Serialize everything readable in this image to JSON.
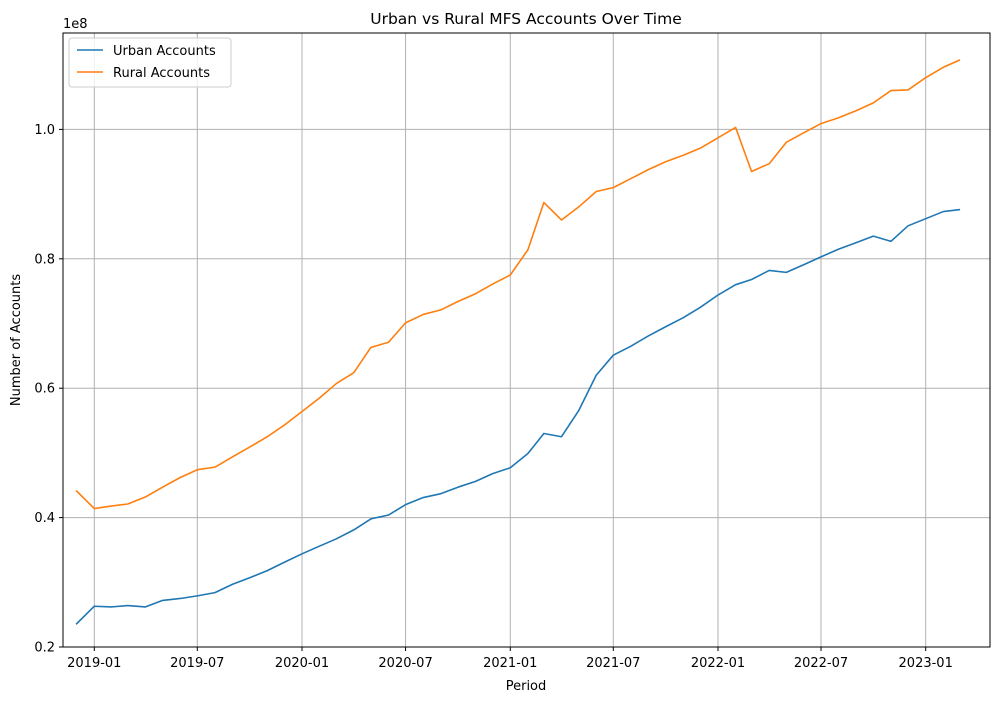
{
  "chart_data": {
    "type": "line",
    "title": "Urban vs Rural MFS Accounts Over Time",
    "xlabel": "Period",
    "ylabel": "Number of Accounts",
    "y_offset_label": "1e8",
    "xlim": [
      "2018-11-07",
      "2023-04-24"
    ],
    "ylim": [
      0.2,
      1.149
    ],
    "y_unit_multiplier": 100000000,
    "y_ticks": [
      "0.2",
      "0.4",
      "0.6",
      "0.8",
      "1.0"
    ],
    "y_tick_values": [
      0.2,
      0.4,
      0.6,
      0.8,
      1.0
    ],
    "x_ticks": [
      "2019-01",
      "2019-07",
      "2020-01",
      "2020-07",
      "2021-01",
      "2021-07",
      "2022-01",
      "2022-07",
      "2023-01"
    ],
    "x_tick_dates": [
      "2019-01-01",
      "2019-07-01",
      "2020-01-01",
      "2020-07-01",
      "2021-01-01",
      "2021-07-01",
      "2022-01-01",
      "2022-07-01",
      "2023-01-01"
    ],
    "grid": true,
    "legend_position": "top-left",
    "x": [
      "2018-12",
      "2019-01",
      "2019-02",
      "2019-03",
      "2019-04",
      "2019-05",
      "2019-06",
      "2019-07",
      "2019-08",
      "2019-09",
      "2019-10",
      "2019-11",
      "2019-12",
      "2020-01",
      "2020-02",
      "2020-03",
      "2020-04",
      "2020-05",
      "2020-06",
      "2020-07",
      "2020-08",
      "2020-09",
      "2020-10",
      "2020-11",
      "2020-12",
      "2021-01",
      "2021-02",
      "2021-03",
      "2021-04",
      "2021-05",
      "2021-06",
      "2021-07",
      "2021-08",
      "2021-09",
      "2021-10",
      "2021-11",
      "2021-12",
      "2022-01",
      "2022-02",
      "2022-03",
      "2022-04",
      "2022-05",
      "2022-06",
      "2022-07",
      "2022-08",
      "2022-09",
      "2022-10",
      "2022-11",
      "2022-12",
      "2023-01",
      "2023-02",
      "2023-03"
    ],
    "series": [
      {
        "name": "Urban Accounts",
        "color": "#1f77b4",
        "values": [
          0.236,
          0.263,
          0.262,
          0.264,
          0.262,
          0.272,
          0.275,
          0.279,
          0.284,
          0.297,
          0.307,
          0.318,
          0.331,
          0.344,
          0.356,
          0.367,
          0.381,
          0.398,
          0.404,
          0.42,
          0.431,
          0.437,
          0.447,
          0.456,
          0.468,
          0.477,
          0.499,
          0.53,
          0.525,
          0.565,
          0.62,
          0.651,
          0.665,
          0.681,
          0.695,
          0.709,
          0.725,
          0.744,
          0.76,
          0.768,
          0.782,
          0.779,
          0.791,
          0.803,
          0.815,
          0.825,
          0.835,
          0.827,
          0.851,
          0.862,
          0.873,
          0.876
        ]
      },
      {
        "name": "Rural Accounts",
        "color": "#ff7f0e",
        "values": [
          0.441,
          0.414,
          0.418,
          0.421,
          0.432,
          0.447,
          0.462,
          0.474,
          0.478,
          0.494,
          0.509,
          0.525,
          0.543,
          0.564,
          0.585,
          0.607,
          0.624,
          0.663,
          0.671,
          0.701,
          0.714,
          0.721,
          0.734,
          0.746,
          0.761,
          0.775,
          0.814,
          0.887,
          0.86,
          0.88,
          0.904,
          0.91,
          0.924,
          0.938,
          0.95,
          0.96,
          0.971,
          0.987,
          1.003,
          0.935,
          0.947,
          0.98,
          0.995,
          1.009,
          1.018,
          1.029,
          1.041,
          1.06,
          1.061,
          1.08,
          1.096,
          1.107
        ]
      }
    ]
  }
}
